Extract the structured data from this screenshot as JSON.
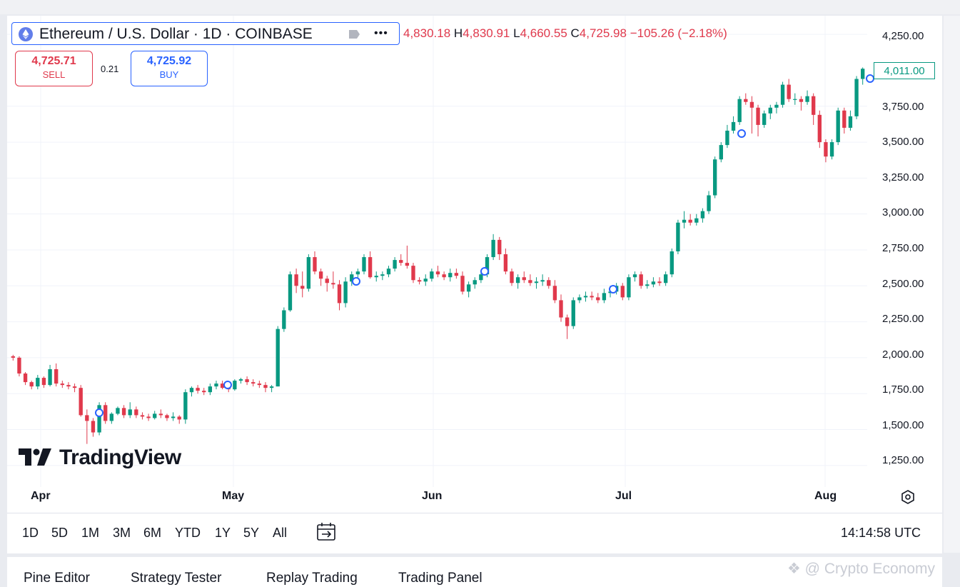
{
  "symbol": {
    "title": "Ethereum / U.S. Dollar · 1D · COINBASE"
  },
  "ohlc": {
    "open": "4,830.18",
    "high_label": "H",
    "high": "4,830.91",
    "low_label": "L",
    "low": "4,660.55",
    "close_label": "C",
    "close": "4,725.98",
    "change": "−105.26 (−2.18%)"
  },
  "trade": {
    "sell_price": "4,725.71",
    "sell_label": "SELL",
    "spread": "0.21",
    "buy_price": "4,725.92",
    "buy_label": "BUY"
  },
  "price_axis": [
    "4,250.00",
    "3,750.00",
    "3,500.00",
    "3,250.00",
    "3,000.00",
    "2,750.00",
    "2,500.00",
    "2,250.00",
    "2,000.00",
    "1,750.00",
    "1,500.00",
    "1,250.00"
  ],
  "last_price": "4,011.00",
  "time_axis": [
    "Apr",
    "May",
    "Jun",
    "Jul",
    "Aug"
  ],
  "logo_text": "TradingView",
  "timeframes": [
    "1D",
    "5D",
    "1M",
    "3M",
    "6M",
    "YTD",
    "1Y",
    "5Y",
    "All"
  ],
  "clock": "14:14:58 UTC",
  "bottom_tabs": [
    "Pine Editor",
    "Strategy Tester",
    "Replay Trading",
    "Trading Panel"
  ],
  "watermark": "@ Crypto Economy",
  "colors": {
    "up": "#089981",
    "down": "#e0394c",
    "accent": "#2962ff"
  },
  "chart_data": {
    "type": "candlestick",
    "ylim": [
      1100,
      4380
    ],
    "x": [
      "Apr",
      "May",
      "Jun",
      "Jul",
      "Aug"
    ],
    "candles_ohlc": [
      [
        2010,
        2020,
        1980,
        2000
      ],
      [
        2000,
        2010,
        1870,
        1890
      ],
      [
        1890,
        1900,
        1810,
        1830
      ],
      [
        1830,
        1840,
        1780,
        1800
      ],
      [
        1800,
        1880,
        1780,
        1860
      ],
      [
        1860,
        1870,
        1790,
        1810
      ],
      [
        1810,
        1950,
        1800,
        1920
      ],
      [
        1920,
        1960,
        1800,
        1820
      ],
      [
        1820,
        1840,
        1790,
        1810
      ],
      [
        1810,
        1830,
        1780,
        1800
      ],
      [
        1800,
        1820,
        1760,
        1790
      ],
      [
        1790,
        1810,
        1590,
        1600
      ],
      [
        1600,
        1640,
        1400,
        1560
      ],
      [
        1560,
        1580,
        1450,
        1480
      ],
      [
        1480,
        1690,
        1460,
        1670
      ],
      [
        1670,
        1690,
        1540,
        1560
      ],
      [
        1560,
        1620,
        1540,
        1610
      ],
      [
        1610,
        1660,
        1600,
        1650
      ],
      [
        1650,
        1670,
        1580,
        1600
      ],
      [
        1600,
        1690,
        1580,
        1640
      ],
      [
        1640,
        1660,
        1580,
        1600
      ],
      [
        1600,
        1620,
        1570,
        1590
      ],
      [
        1590,
        1610,
        1560,
        1580
      ],
      [
        1580,
        1630,
        1570,
        1610
      ],
      [
        1610,
        1640,
        1580,
        1600
      ],
      [
        1600,
        1610,
        1560,
        1580
      ],
      [
        1580,
        1620,
        1560,
        1590
      ],
      [
        1590,
        1600,
        1540,
        1570
      ],
      [
        1570,
        1780,
        1540,
        1760
      ],
      [
        1760,
        1800,
        1730,
        1790
      ],
      [
        1790,
        1810,
        1750,
        1770
      ],
      [
        1770,
        1790,
        1740,
        1760
      ],
      [
        1760,
        1820,
        1740,
        1800
      ],
      [
        1800,
        1840,
        1780,
        1820
      ],
      [
        1820,
        1840,
        1780,
        1790
      ],
      [
        1790,
        1810,
        1760,
        1780
      ],
      [
        1780,
        1850,
        1770,
        1840
      ],
      [
        1840,
        1860,
        1820,
        1850
      ],
      [
        1850,
        1870,
        1810,
        1830
      ],
      [
        1830,
        1850,
        1800,
        1820
      ],
      [
        1820,
        1840,
        1790,
        1810
      ],
      [
        1810,
        1830,
        1760,
        1790
      ],
      [
        1790,
        1810,
        1760,
        1800
      ],
      [
        1800,
        2220,
        1800,
        2200
      ],
      [
        2200,
        2350,
        2180,
        2330
      ],
      [
        2330,
        2600,
        2320,
        2580
      ],
      [
        2580,
        2620,
        2450,
        2500
      ],
      [
        2500,
        2600,
        2420,
        2480
      ],
      [
        2480,
        2720,
        2460,
        2700
      ],
      [
        2700,
        2740,
        2580,
        2600
      ],
      [
        2600,
        2620,
        2500,
        2550
      ],
      [
        2550,
        2570,
        2460,
        2520
      ],
      [
        2520,
        2600,
        2480,
        2510
      ],
      [
        2510,
        2540,
        2330,
        2380
      ],
      [
        2380,
        2560,
        2350,
        2530
      ],
      [
        2530,
        2600,
        2500,
        2580
      ],
      [
        2580,
        2620,
        2550,
        2600
      ],
      [
        2600,
        2720,
        2580,
        2700
      ],
      [
        2700,
        2740,
        2550,
        2560
      ],
      [
        2560,
        2600,
        2530,
        2570
      ],
      [
        2570,
        2600,
        2540,
        2580
      ],
      [
        2580,
        2640,
        2560,
        2620
      ],
      [
        2620,
        2700,
        2600,
        2680
      ],
      [
        2680,
        2720,
        2640,
        2660
      ],
      [
        2660,
        2780,
        2620,
        2640
      ],
      [
        2640,
        2660,
        2520,
        2540
      ],
      [
        2540,
        2560,
        2510,
        2530
      ],
      [
        2530,
        2580,
        2500,
        2550
      ],
      [
        2550,
        2620,
        2530,
        2600
      ],
      [
        2600,
        2640,
        2560,
        2580
      ],
      [
        2580,
        2600,
        2540,
        2560
      ],
      [
        2560,
        2620,
        2530,
        2590
      ],
      [
        2590,
        2620,
        2550,
        2570
      ],
      [
        2570,
        2600,
        2440,
        2460
      ],
      [
        2460,
        2530,
        2420,
        2510
      ],
      [
        2510,
        2560,
        2480,
        2540
      ],
      [
        2540,
        2600,
        2520,
        2580
      ],
      [
        2580,
        2720,
        2560,
        2700
      ],
      [
        2700,
        2860,
        2680,
        2820
      ],
      [
        2820,
        2840,
        2680,
        2720
      ],
      [
        2720,
        2760,
        2580,
        2600
      ],
      [
        2600,
        2620,
        2500,
        2520
      ],
      [
        2520,
        2580,
        2480,
        2560
      ],
      [
        2560,
        2600,
        2520,
        2540
      ],
      [
        2540,
        2580,
        2500,
        2520
      ],
      [
        2520,
        2560,
        2480,
        2530
      ],
      [
        2530,
        2580,
        2500,
        2540
      ],
      [
        2540,
        2560,
        2480,
        2500
      ],
      [
        2500,
        2540,
        2380,
        2400
      ],
      [
        2400,
        2440,
        2250,
        2280
      ],
      [
        2280,
        2300,
        2130,
        2220
      ],
      [
        2220,
        2420,
        2200,
        2400
      ],
      [
        2400,
        2440,
        2380,
        2420
      ],
      [
        2420,
        2460,
        2390,
        2430
      ],
      [
        2430,
        2460,
        2400,
        2420
      ],
      [
        2420,
        2450,
        2380,
        2400
      ],
      [
        2400,
        2480,
        2380,
        2450
      ],
      [
        2450,
        2500,
        2420,
        2460
      ],
      [
        2460,
        2520,
        2440,
        2500
      ],
      [
        2500,
        2520,
        2400,
        2420
      ],
      [
        2420,
        2580,
        2400,
        2560
      ],
      [
        2560,
        2600,
        2530,
        2580
      ],
      [
        2580,
        2600,
        2480,
        2500
      ],
      [
        2500,
        2540,
        2480,
        2510
      ],
      [
        2510,
        2560,
        2490,
        2530
      ],
      [
        2530,
        2560,
        2500,
        2520
      ],
      [
        2520,
        2600,
        2500,
        2580
      ],
      [
        2580,
        2760,
        2560,
        2740
      ],
      [
        2740,
        2960,
        2720,
        2940
      ],
      [
        2940,
        3020,
        2900,
        2960
      ],
      [
        2960,
        3000,
        2920,
        2940
      ],
      [
        2940,
        3000,
        2920,
        2970
      ],
      [
        2970,
        3040,
        2940,
        3020
      ],
      [
        3020,
        3160,
        3000,
        3130
      ],
      [
        3130,
        3400,
        3110,
        3380
      ],
      [
        3380,
        3500,
        3360,
        3480
      ],
      [
        3480,
        3620,
        3460,
        3580
      ],
      [
        3580,
        3680,
        3560,
        3640
      ],
      [
        3640,
        3820,
        3620,
        3800
      ],
      [
        3800,
        3840,
        3760,
        3780
      ],
      [
        3780,
        3820,
        3560,
        3740
      ],
      [
        3740,
        3760,
        3540,
        3620
      ],
      [
        3620,
        3720,
        3600,
        3700
      ],
      [
        3700,
        3760,
        3660,
        3740
      ],
      [
        3740,
        3780,
        3700,
        3760
      ],
      [
        3760,
        3920,
        3740,
        3900
      ],
      [
        3900,
        3940,
        3780,
        3800
      ],
      [
        3800,
        3840,
        3760,
        3800
      ],
      [
        3800,
        3820,
        3720,
        3780
      ],
      [
        3780,
        3860,
        3760,
        3820
      ],
      [
        3820,
        3840,
        3620,
        3690
      ],
      [
        3690,
        3720,
        3460,
        3500
      ],
      [
        3500,
        3520,
        3360,
        3400
      ],
      [
        3400,
        3520,
        3380,
        3500
      ],
      [
        3500,
        3740,
        3480,
        3720
      ],
      [
        3720,
        3740,
        3560,
        3600
      ],
      [
        3600,
        3720,
        3580,
        3680
      ],
      [
        3680,
        3960,
        3660,
        3940
      ],
      [
        3940,
        4020,
        3900,
        4011
      ]
    ]
  }
}
